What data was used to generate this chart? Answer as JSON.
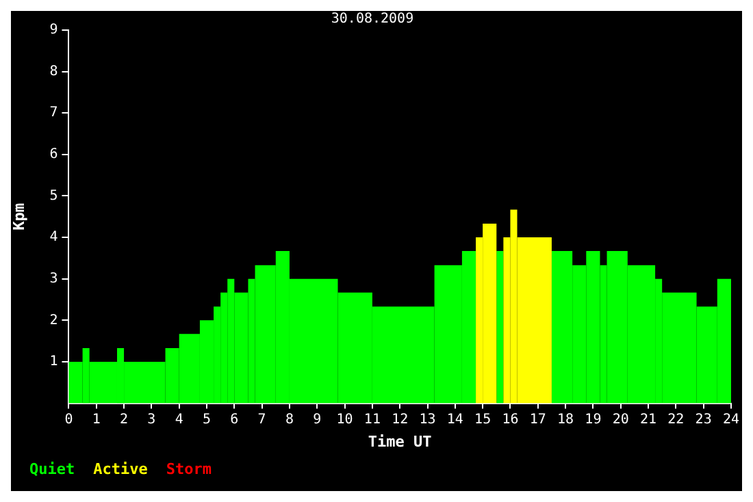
{
  "chart_data": {
    "type": "histogram",
    "title": "30.08.2009",
    "xlabel": "Time UT",
    "ylabel": "Kpm",
    "bins": [
      0,
      0.5,
      0.75,
      1.75,
      2,
      3.5,
      4,
      4.75,
      5.25,
      5.5,
      5.75,
      6,
      6.5,
      6.75,
      7.5,
      8,
      9.75,
      11,
      13.25,
      14.25,
      14.75,
      15,
      15.5,
      15.75,
      16,
      16.25,
      17.5,
      18.25,
      18.75,
      19.25,
      19.5,
      20.25,
      21.25,
      21.5,
      22.75,
      23.5,
      24
    ],
    "series": [
      {
        "name": "Quiet",
        "color": "#00ff00",
        "values": [
          1,
          1.33,
          1,
          1.33,
          1,
          1.33,
          1.67,
          2,
          2.33,
          2.67,
          3,
          2.67,
          3,
          3.33,
          3.67,
          3,
          2.67,
          2.33,
          3.33,
          3.67,
          null,
          null,
          3.67,
          null,
          null,
          null,
          3.67,
          3.33,
          3.67,
          3.33,
          3.67,
          3.33,
          3,
          2.67,
          2.33,
          3
        ]
      },
      {
        "name": "Active",
        "color": "#ffff00",
        "values": [
          null,
          null,
          null,
          null,
          null,
          null,
          null,
          null,
          null,
          null,
          null,
          null,
          null,
          null,
          null,
          null,
          null,
          null,
          null,
          null,
          4,
          4.33,
          null,
          4,
          4.67,
          4,
          null,
          null,
          null,
          null,
          null,
          null,
          null,
          null,
          null,
          null
        ]
      }
    ],
    "annotations": [
      "Storm"
    ],
    "xlim": [
      0,
      24
    ],
    "xticks": [
      0,
      1,
      2,
      3,
      4,
      5,
      6,
      7,
      8,
      9,
      10,
      11,
      12,
      13,
      14,
      15,
      16,
      17,
      18,
      19,
      20,
      21,
      22,
      23,
      24
    ],
    "ylim": [
      0,
      9
    ],
    "yticks": [
      1,
      2,
      3,
      4,
      5,
      6,
      7,
      8,
      9
    ],
    "grid": false,
    "legend": "bottom left"
  }
}
